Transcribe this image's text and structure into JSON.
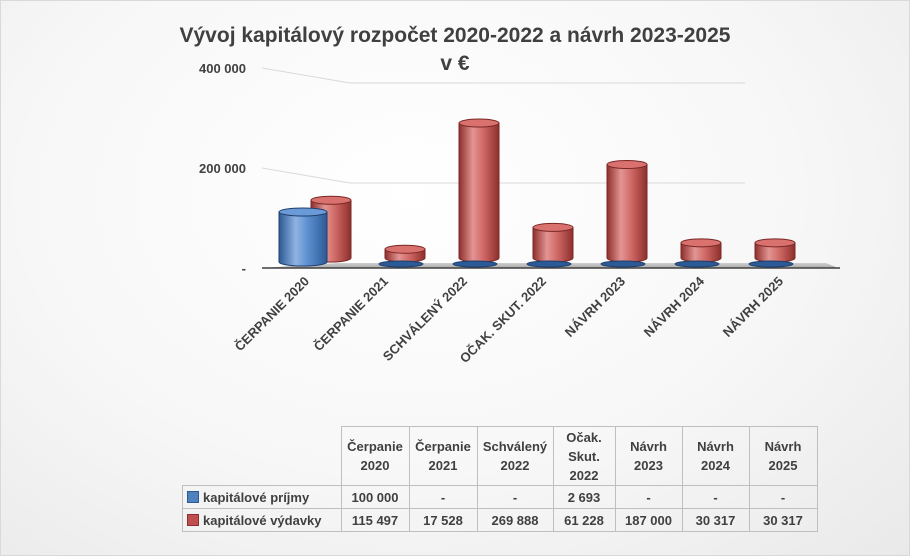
{
  "chart_data": {
    "type": "bar",
    "title": "Vývoj kapitálový rozpočet 2020-2022 a návrh 2023-2025",
    "subtitle": "v €",
    "categories": [
      "ČERPANIE 2020",
      "ČERPANIE 2021",
      "SCHVÁLENÝ 2022",
      "OČAK. SKUT. 2022",
      "NÁVRH 2023",
      "NÁVRH 2024",
      "NÁVRH 2025"
    ],
    "table_headers": [
      [
        "Čerpanie",
        "2020"
      ],
      [
        "Čerpanie",
        "2021"
      ],
      [
        "Schválený",
        "2022"
      ],
      [
        "Očak.",
        "Skut.",
        "2022"
      ],
      [
        "Návrh",
        "2023"
      ],
      [
        "Návrh",
        "2024"
      ],
      [
        "Návrh",
        "2025"
      ]
    ],
    "series": [
      {
        "name": "kapitálové príjmy",
        "color": "#4f81bd",
        "values": [
          100000,
          0,
          0,
          2693,
          0,
          0,
          0
        ],
        "labels": [
          "100 000",
          "-",
          "-",
          "2 693",
          "-",
          "-",
          "-"
        ]
      },
      {
        "name": "kapitálové výdavky",
        "color": "#c0504d",
        "values": [
          115497,
          17528,
          269888,
          61228,
          187000,
          30317,
          30317
        ],
        "labels": [
          "115 497",
          "17 528",
          "269 888",
          "61 228",
          "187 000",
          "30 317",
          "30 317"
        ]
      }
    ],
    "yticks": [
      {
        "value": 0,
        "label": "-"
      },
      {
        "value": 200000,
        "label": "200 000"
      },
      {
        "value": 400000,
        "label": "400 000"
      }
    ],
    "ylim": [
      0,
      400000
    ],
    "style": "3d-cylinder",
    "legend": "data-table"
  }
}
